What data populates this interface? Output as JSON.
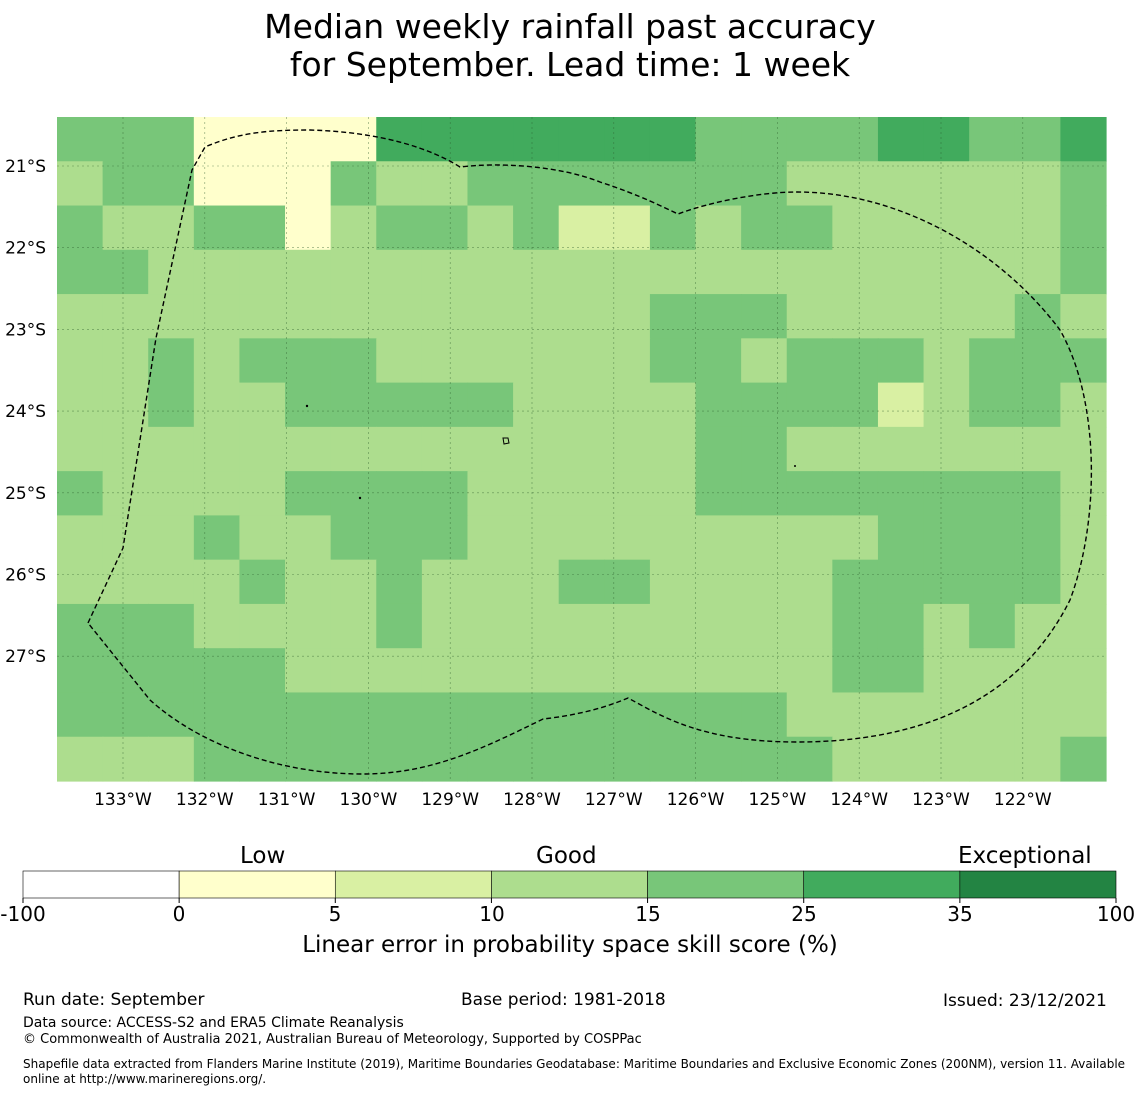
{
  "title": {
    "line1": "Median weekly rainfall past accuracy",
    "line2": "for September. Lead time: 1 week"
  },
  "map": {
    "lon_range": [
      -133.8,
      -121.0
    ],
    "lat_range": [
      -20.4,
      -28.5
    ],
    "lon_ticks": [
      -133,
      -132,
      -131,
      -130,
      -129,
      -128,
      -127,
      -126,
      -125,
      -124,
      -123,
      -122
    ],
    "lon_tick_labels": [
      "133°W",
      "132°W",
      "131°W",
      "130°W",
      "129°W",
      "128°W",
      "127°W",
      "126°W",
      "125°W",
      "124°W",
      "123°W",
      "122°W"
    ],
    "lat_ticks": [
      -21,
      -22,
      -23,
      -24,
      -25,
      -26,
      -27
    ],
    "lat_tick_labels": [
      "21°S",
      "22°S",
      "23°S",
      "24°S",
      "25°S",
      "26°S",
      "27°S"
    ],
    "grid_cols": 23,
    "grid_rows": 15,
    "grid_classes": [
      "44411115555555444455445",
      "34411143344444443333334",
      "43344134434224344333334",
      "44333333333333333333334",
      "33333333333334443333343",
      "33434443333334434443444",
      "33433444443333444423443",
      "33333333333333443333333",
      "43333444433333444444443",
      "33343344433333333344443",
      "33334334333443333444443",
      "44433334333333333443433",
      "44444333333333333443333",
      "44444444444444443333333",
      "33344444444444444333334"
    ],
    "boundary_label": "Exclusive Economic Zone"
  },
  "legend": {
    "category_labels": [
      "Low",
      "Good",
      "Exceptional"
    ],
    "tick_labels": [
      "-100",
      "0",
      "5",
      "10",
      "15",
      "25",
      "35",
      "100"
    ],
    "colors": [
      "#ffffff",
      "#ffffcc",
      "#d9f0a3",
      "#addd8e",
      "#78c679",
      "#41ab5d",
      "#238443"
    ],
    "title": "Linear error in probability space skill score (%)"
  },
  "footer": {
    "run_date": "Run date: September",
    "base_period": "Base period: 1981-2018",
    "issued": "Issued: 23/12/2021",
    "data_source": "Data source: ACCESS-S2 and ERA5 Climate Reanalysis",
    "copyright": "© Commonwealth of Australia 2021, Australian Bureau of Meteorology, Supported by COSPPac",
    "shapefile": "Shapefile data extracted from Flanders Marine Institute (2019), Maritime Boundaries Geodatabase: Maritime Boundaries and Exclusive Economic Zones (200NM), version 11. Available online at http://www.marineregions.org/."
  }
}
